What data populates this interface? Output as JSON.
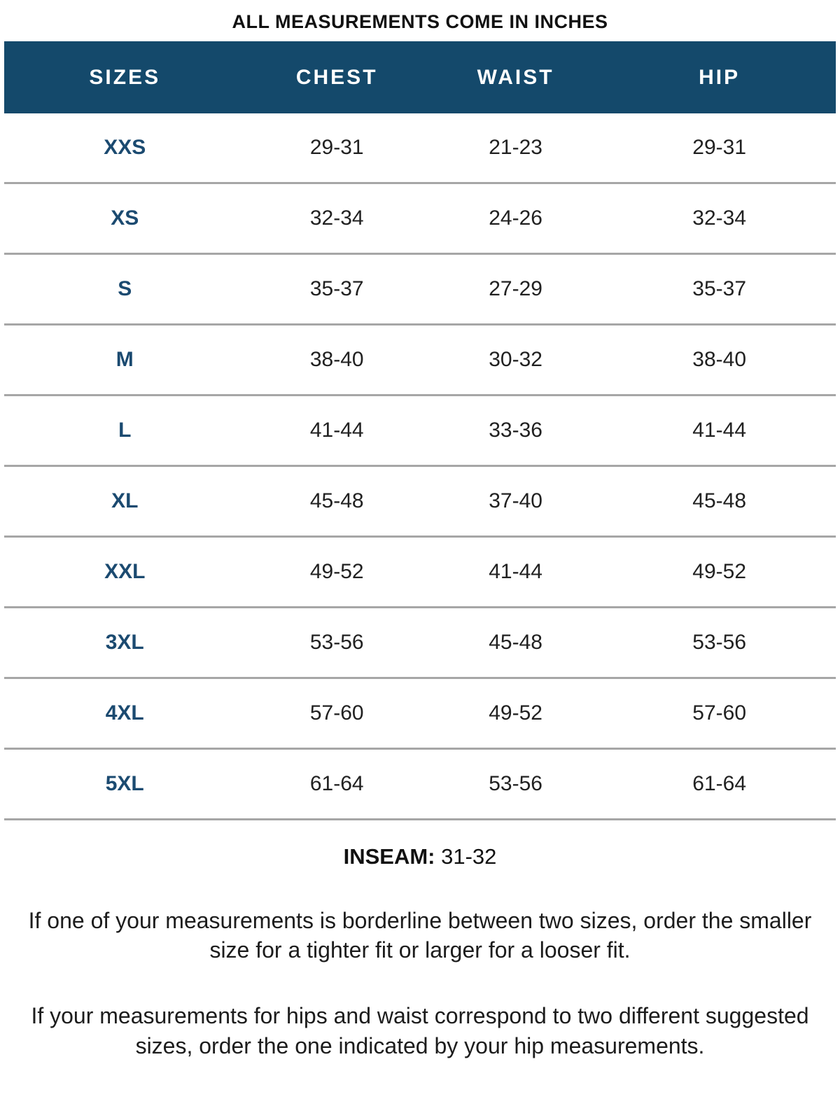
{
  "page": {
    "title": "ALL MEASUREMENTS COME IN INCHES"
  },
  "colors": {
    "header_bg": "#14496b",
    "header_text": "#ffffff",
    "size_label_text": "#1b4a70",
    "row_divider": "#a6a6a6",
    "body_text": "#1c1c1c"
  },
  "table": {
    "headers": [
      "SIZES",
      "CHEST",
      "WAIST",
      "HIP"
    ],
    "rows": [
      {
        "size": "XXS",
        "chest": "29-31",
        "waist": "21-23",
        "hip": "29-31"
      },
      {
        "size": "XS",
        "chest": "32-34",
        "waist": "24-26",
        "hip": "32-34"
      },
      {
        "size": "S",
        "chest": "35-37",
        "waist": "27-29",
        "hip": "35-37"
      },
      {
        "size": "M",
        "chest": "38-40",
        "waist": "30-32",
        "hip": "38-40"
      },
      {
        "size": "L",
        "chest": "41-44",
        "waist": "33-36",
        "hip": "41-44"
      },
      {
        "size": "XL",
        "chest": "45-48",
        "waist": "37-40",
        "hip": "45-48"
      },
      {
        "size": "XXL",
        "chest": "49-52",
        "waist": "41-44",
        "hip": "49-52"
      },
      {
        "size": "3XL",
        "chest": "53-56",
        "waist": "45-48",
        "hip": "53-56"
      },
      {
        "size": "4XL",
        "chest": "57-60",
        "waist": "49-52",
        "hip": "57-60"
      },
      {
        "size": "5XL",
        "chest": "61-64",
        "waist": "53-56",
        "hip": "61-64"
      }
    ]
  },
  "inseam": {
    "label": "INSEAM:",
    "value": "31-32"
  },
  "notes": [
    "If one of your measurements is borderline between two sizes, order the smaller size for a tighter fit or larger for a looser fit.",
    "If your measurements for hips and waist correspond to two different suggested sizes, order the one indicated by your hip measurements."
  ],
  "chart_data": {
    "type": "table",
    "title": "ALL MEASUREMENTS COME IN INCHES",
    "columns": [
      "SIZES",
      "CHEST",
      "WAIST",
      "HIP"
    ],
    "rows": [
      [
        "XXS",
        "29-31",
        "21-23",
        "29-31"
      ],
      [
        "XS",
        "32-34",
        "24-26",
        "32-34"
      ],
      [
        "S",
        "35-37",
        "27-29",
        "35-37"
      ],
      [
        "M",
        "38-40",
        "30-32",
        "38-40"
      ],
      [
        "L",
        "41-44",
        "33-36",
        "41-44"
      ],
      [
        "XL",
        "45-48",
        "37-40",
        "45-48"
      ],
      [
        "XXL",
        "49-52",
        "41-44",
        "49-52"
      ],
      [
        "3XL",
        "53-56",
        "45-48",
        "53-56"
      ],
      [
        "4XL",
        "57-60",
        "49-52",
        "57-60"
      ],
      [
        "5XL",
        "61-64",
        "53-56",
        "61-64"
      ]
    ]
  }
}
